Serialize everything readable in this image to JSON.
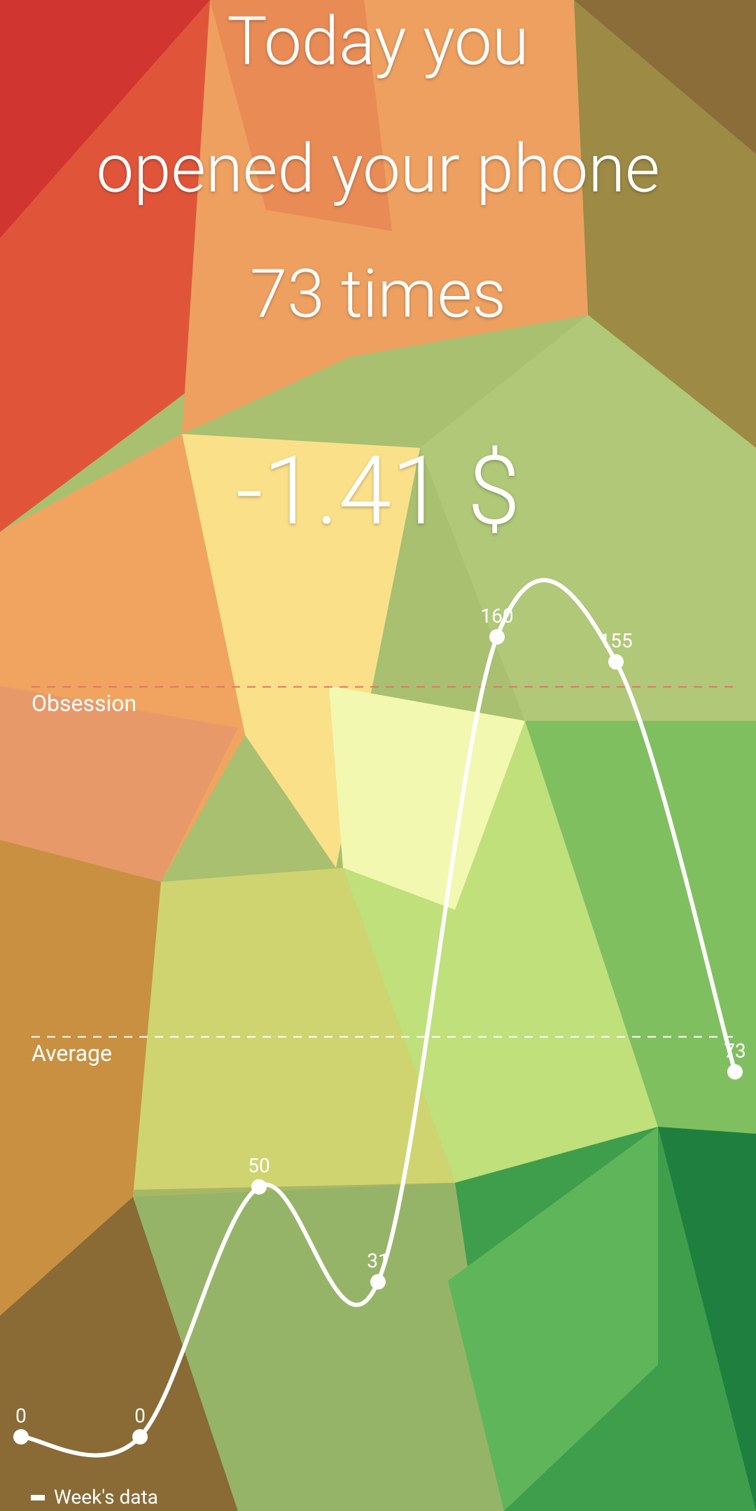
{
  "header": {
    "lines": [
      "Today you",
      "opened your phone",
      "73 times"
    ],
    "amount": "-1.41 $"
  },
  "chart_data": {
    "type": "line",
    "categories": [
      null,
      null,
      null,
      null,
      null,
      null,
      null
    ],
    "series": [
      {
        "name": "Week's data",
        "color": "#ffffff",
        "values": [
          0,
          0,
          50,
          31,
          160,
          155,
          73
        ]
      }
    ],
    "ylim": [
      0,
      160
    ],
    "reference_lines": [
      {
        "name": "Obsession",
        "value": 150,
        "color": "#e57368"
      },
      {
        "name": "Average",
        "value": 80,
        "color": "#ffffff"
      }
    ],
    "smooth": true
  }
}
